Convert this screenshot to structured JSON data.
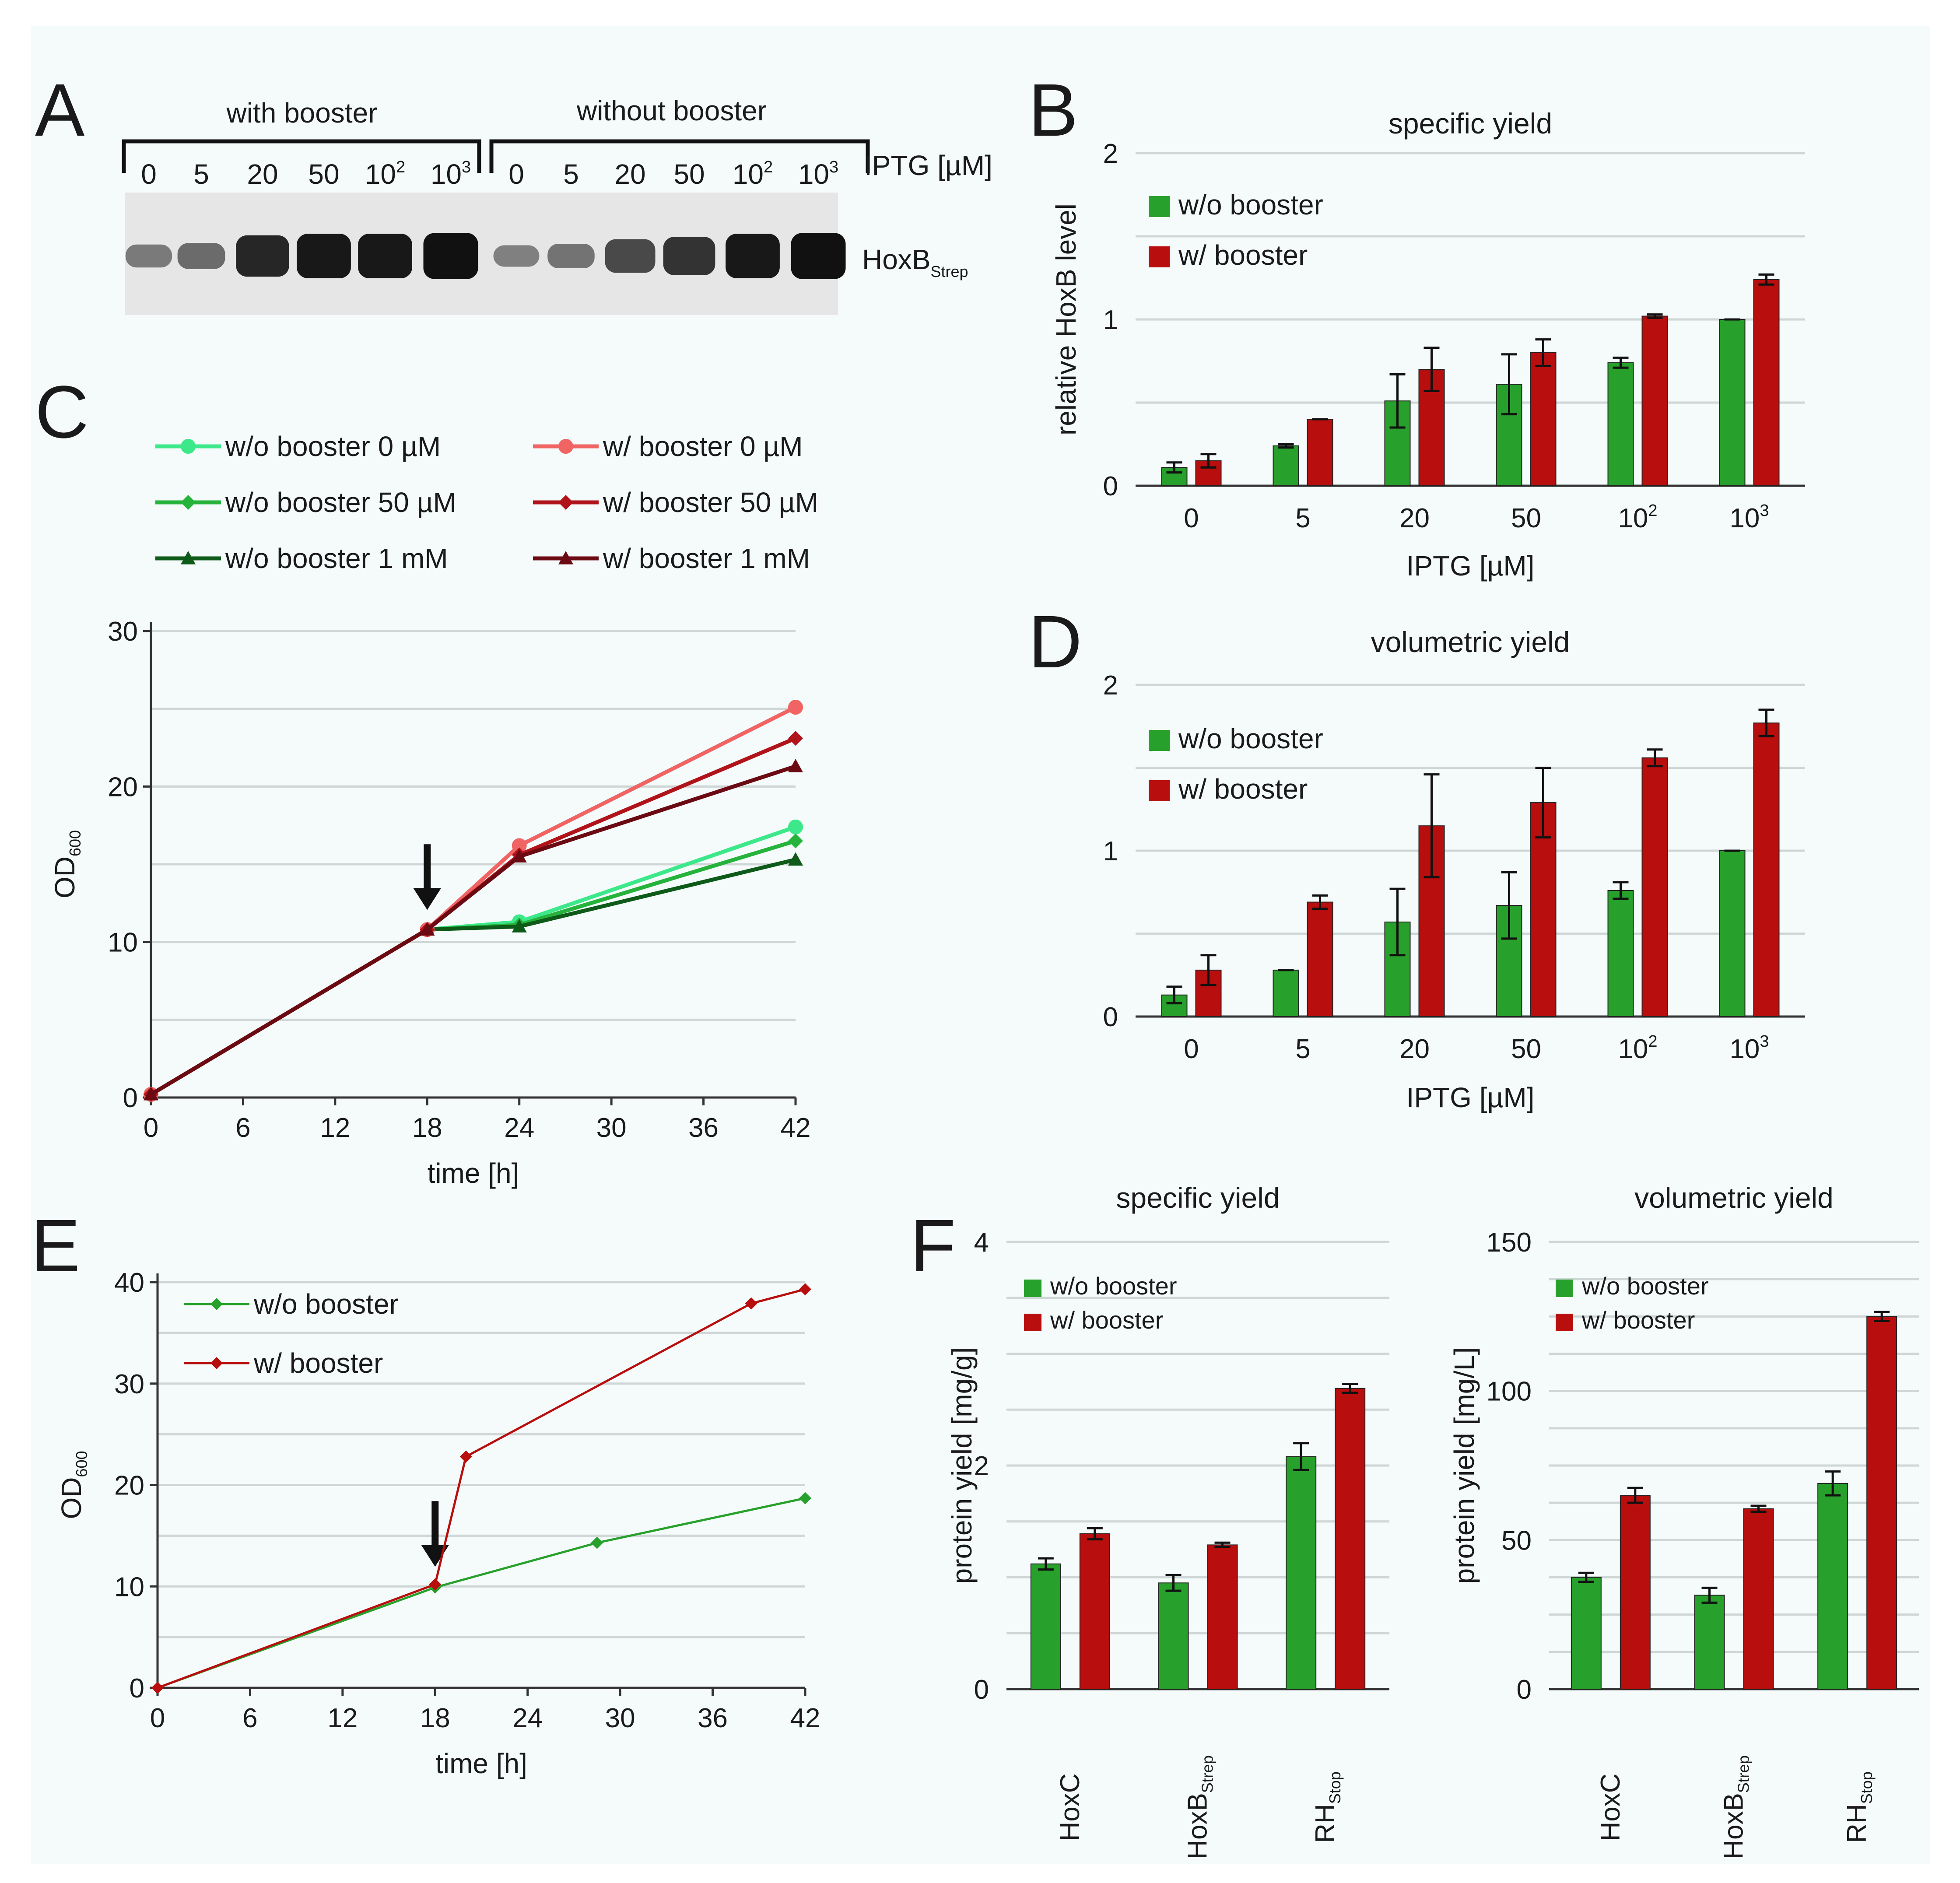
{
  "colors": {
    "green": "#27a12b",
    "red": "#b80e0e",
    "grid": "#cfd6d6",
    "panel": "#f5fbfb"
  },
  "panel_labels": {
    "A": "A",
    "B": "B",
    "C": "C",
    "D": "D",
    "E": "E",
    "F": "F"
  },
  "western_blot": {
    "group_with": "with booster",
    "group_without": "without booster",
    "iptg_label": "IPTG [µM]",
    "lanes": [
      {
        "base": "0",
        "sup": ""
      },
      {
        "base": "5",
        "sup": ""
      },
      {
        "base": "20",
        "sup": ""
      },
      {
        "base": "50",
        "sup": ""
      },
      {
        "base": "10",
        "sup": "2"
      },
      {
        "base": "10",
        "sup": "3"
      }
    ],
    "band_label": "HoxB",
    "band_sub": "Strep",
    "band_intensity_with": [
      0.25,
      0.35,
      0.85,
      0.95,
      0.95,
      1.0
    ],
    "band_intensity_without": [
      0.2,
      0.3,
      0.6,
      0.75,
      0.95,
      1.0
    ]
  },
  "chart_data": [
    {
      "id": "B",
      "type": "bar",
      "title": "specific yield",
      "xlabel": "IPTG [µM]",
      "ylabel": "relative HoxB level",
      "categories": [
        {
          "base": "0",
          "sup": ""
        },
        {
          "base": "5",
          "sup": ""
        },
        {
          "base": "20",
          "sup": ""
        },
        {
          "base": "50",
          "sup": ""
        },
        {
          "base": "10",
          "sup": "2"
        },
        {
          "base": "10",
          "sup": "3"
        }
      ],
      "ylim": [
        0,
        2
      ],
      "yticks": [
        "0",
        "1",
        "2"
      ],
      "grid_step": 0.5,
      "series": [
        {
          "name": "w/o booster",
          "color": "#27a12b",
          "values": [
            0.11,
            0.24,
            0.51,
            0.61,
            0.74,
            1.0
          ],
          "errors": [
            0.03,
            0.01,
            0.16,
            0.18,
            0.03,
            0.0
          ]
        },
        {
          "name": "w/ booster",
          "color": "#b80e0e",
          "values": [
            0.15,
            0.4,
            0.7,
            0.8,
            1.02,
            1.24
          ],
          "errors": [
            0.04,
            0.0,
            0.13,
            0.08,
            0.01,
            0.03
          ]
        }
      ]
    },
    {
      "id": "D",
      "type": "bar",
      "title": "volumetric yield",
      "xlabel": "IPTG [µM]",
      "ylabel": "",
      "categories": [
        {
          "base": "0",
          "sup": ""
        },
        {
          "base": "5",
          "sup": ""
        },
        {
          "base": "20",
          "sup": ""
        },
        {
          "base": "50",
          "sup": ""
        },
        {
          "base": "10",
          "sup": "2"
        },
        {
          "base": "10",
          "sup": "3"
        }
      ],
      "ylim": [
        0,
        2
      ],
      "yticks": [
        "0",
        "1",
        "2"
      ],
      "grid_step": 0.5,
      "series": [
        {
          "name": "w/o booster",
          "color": "#27a12b",
          "values": [
            0.13,
            0.28,
            0.57,
            0.67,
            0.76,
            1.0
          ],
          "errors": [
            0.05,
            0.0,
            0.2,
            0.2,
            0.05,
            0.0
          ]
        },
        {
          "name": "w/ booster",
          "color": "#b80e0e",
          "values": [
            0.28,
            0.69,
            1.15,
            1.29,
            1.56,
            1.77
          ],
          "errors": [
            0.09,
            0.04,
            0.31,
            0.21,
            0.05,
            0.08
          ]
        }
      ]
    },
    {
      "id": "C",
      "type": "line",
      "title": "",
      "xlabel": "time [h]",
      "ylabel_base": "OD",
      "ylabel_sub": "600",
      "xlim": [
        0,
        42
      ],
      "xticks": [
        0,
        6,
        12,
        18,
        24,
        30,
        36,
        42
      ],
      "ylim": [
        0,
        30
      ],
      "yticks": [
        0,
        10,
        20,
        30
      ],
      "grid_step": 5,
      "arrow_at": {
        "x": 18,
        "y": 10.8
      },
      "series": [
        {
          "name": "w/o booster 0 µM",
          "color": "#3de88a",
          "marker": "circle",
          "x": [
            0,
            18,
            24,
            42
          ],
          "y": [
            0.2,
            10.8,
            11.3,
            17.4
          ]
        },
        {
          "name": "w/o booster 50 µM",
          "color": "#25b33b",
          "marker": "diamond",
          "x": [
            0,
            18,
            24,
            42
          ],
          "y": [
            0.2,
            10.8,
            11.1,
            16.5
          ]
        },
        {
          "name": "w/o booster 1 mM",
          "color": "#0e5a19",
          "marker": "triangle",
          "x": [
            0,
            18,
            24,
            42
          ],
          "y": [
            0.2,
            10.8,
            11.0,
            15.3
          ]
        },
        {
          "name": "w/ booster 0 µM",
          "color": "#f06464",
          "marker": "circle",
          "x": [
            0,
            18,
            24,
            42
          ],
          "y": [
            0.2,
            10.8,
            16.2,
            25.1
          ]
        },
        {
          "name": "w/ booster 50 µM",
          "color": "#b0141a",
          "marker": "diamond",
          "x": [
            0,
            18,
            24,
            42
          ],
          "y": [
            0.2,
            10.8,
            15.6,
            23.1
          ]
        },
        {
          "name": "w/ booster 1 mM",
          "color": "#6b0a12",
          "marker": "triangle",
          "x": [
            0,
            18,
            24,
            42
          ],
          "y": [
            0.2,
            10.8,
            15.5,
            21.3
          ]
        }
      ]
    },
    {
      "id": "E",
      "type": "line",
      "title": "",
      "xlabel": "time [h]",
      "ylabel_base": "OD",
      "ylabel_sub": "600",
      "xlim": [
        0,
        42
      ],
      "xticks": [
        0,
        6,
        12,
        18,
        24,
        30,
        36,
        42
      ],
      "ylim": [
        0,
        40
      ],
      "yticks": [
        0,
        10,
        20,
        30,
        40
      ],
      "grid_step": 5,
      "arrow_at": {
        "x": 18,
        "y": 10
      },
      "series": [
        {
          "name": "w/o booster",
          "color": "#27a12b",
          "marker": "diamond",
          "x": [
            0,
            18,
            28.5,
            42
          ],
          "y": [
            0,
            9.9,
            14.3,
            18.7
          ]
        },
        {
          "name": "w/ booster",
          "color": "#b80e0e",
          "marker": "diamond",
          "x": [
            0,
            18,
            20,
            38.5,
            42
          ],
          "y": [
            0,
            10.2,
            22.8,
            37.9,
            39.3
          ]
        }
      ]
    },
    {
      "id": "F-specific",
      "type": "bar",
      "title": "specific yield",
      "xlabel": "",
      "ylabel": "protein yield [mg/g]",
      "categories": [
        {
          "base": "HoxC",
          "sub": ""
        },
        {
          "base": "HoxB",
          "sub": "Strep"
        },
        {
          "base": "RH",
          "sub": "Stop"
        }
      ],
      "ylim": [
        0,
        4
      ],
      "yticks": [
        "0",
        "2",
        "4"
      ],
      "grid_step": 0.5,
      "series": [
        {
          "name": "w/o booster",
          "color": "#27a12b",
          "values": [
            1.12,
            0.95,
            2.08
          ],
          "errors": [
            0.05,
            0.07,
            0.12
          ]
        },
        {
          "name": "w/ booster",
          "color": "#b80e0e",
          "values": [
            1.39,
            1.29,
            2.69
          ],
          "errors": [
            0.05,
            0.02,
            0.04
          ]
        }
      ]
    },
    {
      "id": "F-volumetric",
      "type": "bar",
      "title": "volumetric yield",
      "xlabel": "",
      "ylabel": "protein yield [mg/L]",
      "categories": [
        {
          "base": "HoxC",
          "sub": ""
        },
        {
          "base": "HoxB",
          "sub": "Strep"
        },
        {
          "base": "RH",
          "sub": "Stop"
        }
      ],
      "ylim": [
        0,
        150
      ],
      "yticks": [
        "0",
        "50",
        "100",
        "150"
      ],
      "grid_step": 12.5,
      "series": [
        {
          "name": "w/o booster",
          "color": "#27a12b",
          "values": [
            37.5,
            31.5,
            69
          ],
          "errors": [
            1.5,
            2.5,
            4
          ]
        },
        {
          "name": "w/ booster",
          "color": "#b80e0e",
          "values": [
            65,
            60.5,
            125
          ],
          "errors": [
            2.5,
            1.0,
            1.5
          ]
        }
      ]
    }
  ]
}
